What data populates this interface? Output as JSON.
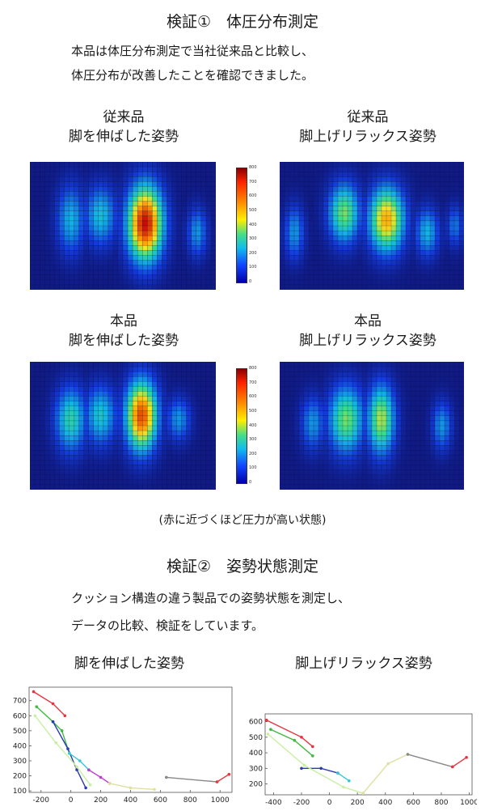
{
  "section1": {
    "title": "検証①　体圧分布測定",
    "intro_line1": "本品は体圧分布測定で当社従来品と比較し、",
    "intro_line2": "体圧分布が改善したことを確認できました。",
    "panels": [
      {
        "line1": "従来品",
        "line2": "脚を伸ばした姿勢"
      },
      {
        "line1": "従来品",
        "line2": "脚上げリラックス姿勢"
      },
      {
        "line1": "本品",
        "line2": "脚を伸ばした姿勢"
      },
      {
        "line1": "本品",
        "line2": "脚上げリラックス姿勢"
      }
    ],
    "colorbar_ticks": [
      "800",
      "700",
      "600",
      "500",
      "400",
      "300",
      "200",
      "100",
      "0"
    ],
    "note": "(赤に近づくほど圧力が高い状態)"
  },
  "section2": {
    "title": "検証②　姿勢状態測定",
    "intro_line1": "クッション構造の違う製品での姿勢状態を測定し、",
    "intro_line2": "データの比較、検証をしています。",
    "chart_titles": [
      "脚を伸ばした姿勢",
      "脚上げリラックス姿勢"
    ]
  },
  "chart_data": [
    {
      "type": "line",
      "x_ticks": [
        "-200",
        "0",
        "200",
        "400",
        "600",
        "800",
        "1000"
      ],
      "y_ticks": [
        "100",
        "200",
        "300",
        "400",
        "500",
        "600",
        "700"
      ],
      "xlim": [
        -280,
        1080
      ],
      "ylim": [
        90,
        790
      ],
      "series": [
        {
          "color": "#e8323c",
          "points": [
            [
              -250,
              760
            ],
            [
              -120,
              680
            ],
            [
              -40,
              600
            ]
          ]
        },
        {
          "color": "#3dbb3d",
          "points": [
            [
              -230,
              660
            ],
            [
              -120,
              560
            ],
            [
              -60,
              500
            ],
            [
              -10,
              350
            ]
          ]
        },
        {
          "color": "#2a3ab0",
          "points": [
            [
              -120,
              560
            ],
            [
              -20,
              380
            ],
            [
              40,
              240
            ],
            [
              100,
              120
            ]
          ]
        },
        {
          "color": "#35c7d8",
          "points": [
            [
              -10,
              350
            ],
            [
              60,
              300
            ],
            [
              120,
              240
            ]
          ]
        },
        {
          "color": "#c23ad6",
          "points": [
            [
              120,
              240
            ],
            [
              200,
              190
            ],
            [
              260,
              150
            ]
          ]
        },
        {
          "color": "#c8f0a0",
          "points": [
            [
              -240,
              600
            ],
            [
              -100,
              420
            ],
            [
              40,
              260
            ],
            [
              130,
              140
            ]
          ]
        },
        {
          "color": "#e0e0a0",
          "points": [
            [
              260,
              150
            ],
            [
              400,
              120
            ],
            [
              560,
              110
            ]
          ]
        },
        {
          "color": "#888888",
          "points": [
            [
              640,
              190
            ],
            [
              980,
              160
            ]
          ]
        },
        {
          "color": "#e8323c",
          "points": [
            [
              980,
              160
            ],
            [
              1060,
              210
            ]
          ]
        }
      ]
    },
    {
      "type": "line",
      "x_ticks": [
        "-400",
        "-200",
        "0",
        "200",
        "400",
        "600",
        "800",
        "1000"
      ],
      "y_ticks": [
        "200",
        "300",
        "400",
        "500",
        "600"
      ],
      "xlim": [
        -460,
        1020
      ],
      "ylim": [
        130,
        650
      ],
      "series": [
        {
          "color": "#e8323c",
          "points": [
            [
              -450,
              610
            ],
            [
              -200,
              500
            ],
            [
              -120,
              440
            ]
          ]
        },
        {
          "color": "#3dbb3d",
          "points": [
            [
              -420,
              550
            ],
            [
              -250,
              480
            ],
            [
              -120,
              380
            ]
          ]
        },
        {
          "color": "#2a3ab0",
          "points": [
            [
              -200,
              300
            ],
            [
              -60,
              300
            ],
            [
              60,
              270
            ]
          ]
        },
        {
          "color": "#35c7d8",
          "points": [
            [
              60,
              270
            ],
            [
              140,
              220
            ]
          ]
        },
        {
          "color": "#c8f0a0",
          "points": [
            [
              -440,
              520
            ],
            [
              -180,
              320
            ],
            [
              100,
              180
            ],
            [
              240,
              140
            ]
          ]
        },
        {
          "color": "#e0e0a0",
          "points": [
            [
              240,
              140
            ],
            [
              420,
              330
            ],
            [
              560,
              390
            ]
          ]
        },
        {
          "color": "#888888",
          "points": [
            [
              560,
              390
            ],
            [
              880,
              310
            ]
          ]
        },
        {
          "color": "#e8323c",
          "points": [
            [
              880,
              310
            ],
            [
              980,
              370
            ]
          ]
        }
      ]
    }
  ]
}
